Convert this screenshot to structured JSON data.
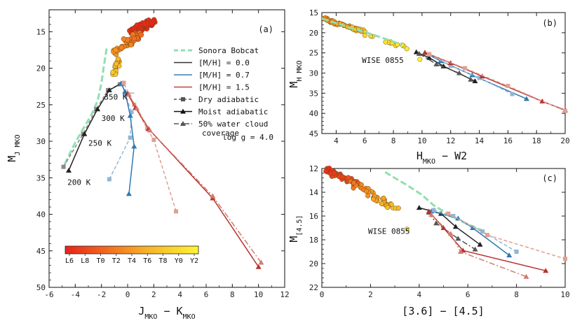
{
  "chart_data": [
    {
      "panel_label": "(a)",
      "type": "scatter",
      "xlabel": "J_MKO - K_MKO",
      "ylabel": "M_J_MKO",
      "xlim": [
        -6,
        12
      ],
      "ylim": [
        50,
        12
      ],
      "xticks": [
        -6,
        -4,
        -2,
        0,
        2,
        4,
        6,
        8,
        10,
        12
      ],
      "yticks": [
        15,
        20,
        25,
        30,
        35,
        40,
        45,
        50
      ],
      "annotation_logg": "log g = 4.0",
      "temperature_labels": [
        {
          "text": "350 K",
          "x": -1.8,
          "y": 24.3
        },
        {
          "text": "300 K",
          "x": -2.0,
          "y": 27.2
        },
        {
          "text": "250 K",
          "x": -3.0,
          "y": 30.6
        },
        {
          "text": "200 K",
          "x": -4.6,
          "y": 36.0
        }
      ],
      "legend": [
        {
          "label": "Sonora Bobcat",
          "style": "sonora"
        },
        {
          "label": "[M/H] = 0.0",
          "style": "solid",
          "color": "#333333"
        },
        {
          "label": "[M/H] = 0.7",
          "style": "solid",
          "color": "#3a7bb0"
        },
        {
          "label": "[M/H] = 1.5",
          "style": "solid",
          "color": "#c0443a"
        },
        {
          "label": "Dry adiabatic",
          "style": "dry",
          "color": "#555555"
        },
        {
          "label": "Moist adiabatic",
          "style": "moist",
          "color": "#111111"
        },
        {
          "label": "50% water cloud",
          "label2": "coverage",
          "style": "cloud",
          "color": "#555555"
        }
      ],
      "colorbar": {
        "ticks": [
          "L6",
          "L8",
          "T0",
          "T2",
          "T4",
          "T6",
          "T8",
          "Y0",
          "Y2"
        ],
        "low_color": "#e8231c",
        "high_color": "#fff533"
      },
      "sonora": [
        [
          -1.6,
          17.3
        ],
        [
          -1.8,
          19.5
        ],
        [
          -2.0,
          22.0
        ],
        [
          -2.3,
          24.5
        ],
        [
          -2.8,
          26.5
        ],
        [
          -3.4,
          28.3
        ],
        [
          -4.1,
          30.5
        ],
        [
          -4.9,
          33.5
        ]
      ],
      "series": [
        {
          "name": "Z0 dry",
          "color": "#888888",
          "dash": "5,3",
          "marker": "s",
          "points": [
            [
              -4.9,
              33.5
            ],
            [
              -3.4,
              29.0
            ],
            [
              -2.4,
              25.6
            ],
            [
              -1.5,
              23.0
            ],
            [
              -0.6,
              22.2
            ]
          ]
        },
        {
          "name": "Z0 moist",
          "color": "#222222",
          "dash": "",
          "marker": "t",
          "points": [
            [
              -4.5,
              34.0
            ],
            [
              -3.3,
              29.0
            ],
            [
              -2.3,
              25.6
            ],
            [
              -1.4,
              23.0
            ],
            [
              -0.5,
              22.1
            ]
          ]
        },
        {
          "name": "Z0.7 dry",
          "color": "#8fb6d6",
          "dash": "5,3",
          "marker": "s",
          "points": [
            [
              -1.4,
              35.2
            ],
            [
              0.2,
              29.5
            ],
            [
              0.3,
              26.0
            ],
            [
              -0.2,
              23.5
            ],
            [
              -0.4,
              22.2
            ]
          ]
        },
        {
          "name": "Z0.7 moist",
          "color": "#2f78b0",
          "dash": "",
          "marker": "t",
          "points": [
            [
              0.1,
              37.2
            ],
            [
              0.5,
              30.7
            ],
            [
              0.2,
              26.5
            ],
            [
              -0.2,
              23.2
            ],
            [
              -0.5,
              22.1
            ]
          ]
        },
        {
          "name": "Z1.5 dry",
          "color": "#e0a090",
          "dash": "5,3",
          "marker": "s",
          "points": [
            [
              3.7,
              39.6
            ],
            [
              2.0,
              29.8
            ],
            [
              1.5,
              28.3
            ],
            [
              0.5,
              25.0
            ],
            [
              -0.3,
              22.0
            ]
          ]
        },
        {
          "name": "Z1.5 moist",
          "color": "#b8332d",
          "dash": "",
          "marker": "t",
          "points": [
            [
              10.0,
              47.2
            ],
            [
              6.5,
              37.8
            ],
            [
              1.6,
              28.3
            ],
            [
              0.6,
              25.4
            ],
            [
              0.0,
              23.5
            ]
          ]
        },
        {
          "name": "Z1.5 cloud",
          "color": "#d47a70",
          "dash": "8,3,2,3",
          "marker": "t",
          "points": [
            [
              10.2,
              46.6
            ],
            [
              6.5,
              37.5
            ],
            [
              1.7,
              28.5
            ],
            [
              0.7,
              25.5
            ],
            [
              0.1,
              23.6
            ]
          ]
        }
      ]
    },
    {
      "panel_label": "(b)",
      "type": "scatter",
      "xlabel": "H_MKO - W2",
      "ylabel": "M_H_MKO",
      "xlim": [
        3,
        20
      ],
      "ylim": [
        45,
        15
      ],
      "xticks": [
        4,
        6,
        8,
        10,
        12,
        14,
        16,
        18,
        20
      ],
      "yticks": [
        15,
        20,
        25,
        30,
        35,
        40,
        45
      ],
      "annotation": "WISE 0855",
      "sonora": [
        [
          3.0,
          16.5
        ],
        [
          4.0,
          17.6
        ],
        [
          5.0,
          18.8
        ],
        [
          6.0,
          19.8
        ],
        [
          7.0,
          21.0
        ],
        [
          8.0,
          22.2
        ],
        [
          8.6,
          23.0
        ]
      ],
      "series": [
        {
          "name": "Z0 moist",
          "color": "#222222",
          "dash": "",
          "marker": "t",
          "points": [
            [
              9.6,
              24.8
            ],
            [
              10.5,
              26.2
            ],
            [
              11.5,
              28.3
            ],
            [
              13.7,
              32.0
            ]
          ]
        },
        {
          "name": "Z0 cloud",
          "color": "#555555",
          "dash": "8,3,2,3",
          "marker": "t",
          "points": [
            [
              9.8,
              25.2
            ],
            [
              11.0,
              27.8
            ],
            [
              12.6,
              30.0
            ],
            [
              13.4,
              31.6
            ]
          ]
        },
        {
          "name": "Z0.7 moist",
          "color": "#2f78b0",
          "dash": "",
          "marker": "t",
          "points": [
            [
              10.2,
              25.0
            ],
            [
              11.3,
              27.0
            ],
            [
              13.5,
              30.5
            ],
            [
              17.3,
              36.4
            ]
          ]
        },
        {
          "name": "Z0.7 dry",
          "color": "#8fb6d6",
          "dash": "5,3",
          "marker": "s",
          "points": [
            [
              10.5,
              25.4
            ],
            [
              12.0,
              28.2
            ],
            [
              14.0,
              31.2
            ],
            [
              16.3,
              35.2
            ]
          ]
        },
        {
          "name": "Z1.5 moist",
          "color": "#b8332d",
          "dash": "",
          "marker": "t",
          "points": [
            [
              10.2,
              24.9
            ],
            [
              12.0,
              27.5
            ],
            [
              14.2,
              30.8
            ],
            [
              18.4,
              37.0
            ],
            [
              20.0,
              39.2
            ]
          ]
        },
        {
          "name": "Z1.5 dry",
          "color": "#e0a090",
          "dash": "5,3",
          "marker": "s",
          "points": [
            [
              10.5,
              25.3
            ],
            [
              13.0,
              28.8
            ],
            [
              16.0,
              33.2
            ],
            [
              20.0,
              39.4
            ]
          ]
        }
      ]
    },
    {
      "panel_label": "(c)",
      "type": "scatter",
      "xlabel": "[3.6] - [4.5]",
      "ylabel": "M_[4.5]",
      "xlim": [
        0,
        10
      ],
      "ylim": [
        22,
        12
      ],
      "xticks": [
        0,
        2,
        4,
        6,
        8,
        10
      ],
      "yticks": [
        12,
        14,
        16,
        18,
        20,
        22
      ],
      "annotation": "WISE 0855",
      "sonora": [
        [
          2.6,
          12.3
        ],
        [
          3.0,
          12.8
        ],
        [
          3.5,
          13.4
        ],
        [
          4.1,
          14.2
        ],
        [
          4.6,
          15.1
        ],
        [
          5.4,
          16.1
        ],
        [
          6.0,
          16.7
        ],
        [
          6.7,
          17.3
        ]
      ],
      "series": [
        {
          "name": "Z0 moist",
          "color": "#222222",
          "dash": "",
          "marker": "t",
          "points": [
            [
              4.0,
              15.3
            ],
            [
              4.9,
              15.8
            ],
            [
              5.5,
              16.9
            ],
            [
              6.5,
              18.4
            ]
          ]
        },
        {
          "name": "Z0 cloud",
          "color": "#555555",
          "dash": "8,3,2,3",
          "marker": "t",
          "points": [
            [
              4.4,
              15.7
            ],
            [
              4.7,
              16.6
            ],
            [
              5.6,
              17.9
            ],
            [
              6.3,
              18.8
            ]
          ]
        },
        {
          "name": "Z0.7 moist",
          "color": "#2f78b0",
          "dash": "",
          "marker": "t",
          "points": [
            [
              4.5,
              15.6
            ],
            [
              5.6,
              16.2
            ],
            [
              6.2,
              17.0
            ],
            [
              7.7,
              19.3
            ]
          ]
        },
        {
          "name": "Z0.7 dry",
          "color": "#8fb6d6",
          "dash": "5,3",
          "marker": "s",
          "points": [
            [
              4.6,
              15.5
            ],
            [
              5.4,
              16.0
            ],
            [
              6.6,
              17.3
            ],
            [
              8.0,
              19.0
            ]
          ]
        },
        {
          "name": "Z1.5 moist",
          "color": "#b8332d",
          "dash": "",
          "marker": "t",
          "points": [
            [
              4.4,
              15.6
            ],
            [
              5.0,
              17.0
            ],
            [
              5.8,
              18.9
            ],
            [
              9.2,
              20.6
            ]
          ]
        },
        {
          "name": "Z1.5 cloud",
          "color": "#d47a70",
          "dash": "8,3,2,3",
          "marker": "t",
          "points": [
            [
              4.5,
              15.9
            ],
            [
              5.3,
              17.5
            ],
            [
              5.7,
              19.0
            ],
            [
              8.4,
              21.1
            ]
          ]
        },
        {
          "name": "Z1.5 dry",
          "color": "#e0a090",
          "dash": "5,3",
          "marker": "s",
          "points": [
            [
              5.2,
              15.8
            ],
            [
              6.8,
              17.6
            ],
            [
              10.0,
              19.6
            ]
          ]
        }
      ]
    }
  ]
}
